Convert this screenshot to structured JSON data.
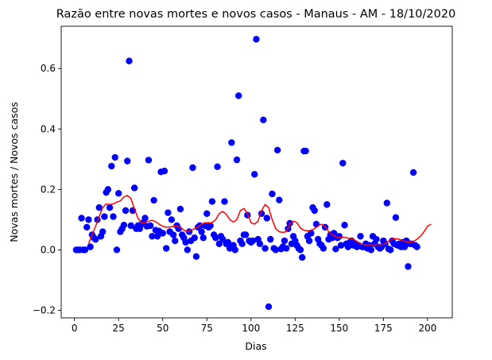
{
  "chart_data": {
    "type": "scatter",
    "title": "Razão entre novas mortes e novos casos - Manaus - AM - 18/10/2020",
    "xlabel": "Dias",
    "ylabel": "Novas mortes / Novos casos",
    "xlim": [
      -7.5,
      214
    ],
    "ylim": [
      -0.225,
      0.74
    ],
    "x_ticks": [
      0,
      25,
      50,
      75,
      100,
      125,
      150,
      175,
      200
    ],
    "y_ticks": [
      -0.2,
      0.0,
      0.2,
      0.4,
      0.6
    ],
    "x_tick_labels": [
      "0",
      "25",
      "50",
      "75",
      "100",
      "125",
      "150",
      "175",
      "200"
    ],
    "y_tick_labels": [
      "−0.2",
      "0.0",
      "0.2",
      "0.4",
      "0.6"
    ],
    "grid": false,
    "legend": "none",
    "colors": {
      "points": "#0000ff",
      "line": "#ff0000"
    },
    "series": [
      {
        "kind": "scatter",
        "points": [
          [
            1,
            0.0
          ],
          [
            2,
            0.0
          ],
          [
            3,
            0.0
          ],
          [
            4,
            0.105
          ],
          [
            5,
            0.0
          ],
          [
            6,
            0.0
          ],
          [
            7,
            0.075
          ],
          [
            8,
            0.1
          ],
          [
            9,
            0.01
          ],
          [
            10,
            0.05
          ],
          [
            11,
            0.04
          ],
          [
            12,
            0.035
          ],
          [
            13,
            0.1
          ],
          [
            14,
            0.14
          ],
          [
            15,
            0.045
          ],
          [
            16,
            0.06
          ],
          [
            17,
            0.11
          ],
          [
            18,
            0.19
          ],
          [
            19,
            0.2
          ],
          [
            20,
            0.14
          ],
          [
            21,
            0.277
          ],
          [
            22,
            0.11
          ],
          [
            23,
            0.306
          ],
          [
            24,
            0.0
          ],
          [
            25,
            0.187
          ],
          [
            26,
            0.06
          ],
          [
            27,
            0.07
          ],
          [
            28,
            0.082
          ],
          [
            29,
            0.13
          ],
          [
            30,
            0.294
          ],
          [
            31,
            0.625
          ],
          [
            32,
            0.08
          ],
          [
            33,
            0.13
          ],
          [
            34,
            0.205
          ],
          [
            35,
            0.07
          ],
          [
            36,
            0.08
          ],
          [
            37,
            0.07
          ],
          [
            38,
            0.085
          ],
          [
            39,
            0.09
          ],
          [
            40,
            0.105
          ],
          [
            41,
            0.078
          ],
          [
            42,
            0.297
          ],
          [
            43,
            0.08
          ],
          [
            44,
            0.045
          ],
          [
            45,
            0.164
          ],
          [
            46,
            0.065
          ],
          [
            47,
            0.045
          ],
          [
            48,
            0.062
          ],
          [
            49,
            0.258
          ],
          [
            50,
            0.055
          ],
          [
            51,
            0.261
          ],
          [
            52,
            0.005
          ],
          [
            53,
            0.123
          ],
          [
            54,
            0.06
          ],
          [
            55,
            0.1
          ],
          [
            56,
            0.05
          ],
          [
            57,
            0.03
          ],
          [
            58,
            0.08
          ],
          [
            59,
            0.07
          ],
          [
            60,
            0.135
          ],
          [
            61,
            0.05
          ],
          [
            62,
            0.04
          ],
          [
            63,
            0.025
          ],
          [
            64,
            0.0
          ],
          [
            65,
            0.06
          ],
          [
            66,
            0.03
          ],
          [
            67,
            0.272
          ],
          [
            68,
            0.04
          ],
          [
            69,
            -0.022
          ],
          [
            70,
            0.075
          ],
          [
            71,
            0.08
          ],
          [
            72,
            0.06
          ],
          [
            73,
            0.04
          ],
          [
            74,
            0.08
          ],
          [
            75,
            0.12
          ],
          [
            76,
            0.075
          ],
          [
            77,
            0.08
          ],
          [
            78,
            0.16
          ],
          [
            79,
            0.05
          ],
          [
            80,
            0.04
          ],
          [
            81,
            0.275
          ],
          [
            82,
            0.02
          ],
          [
            83,
            0.045
          ],
          [
            84,
            0.035
          ],
          [
            85,
            0.16
          ],
          [
            86,
            0.02
          ],
          [
            87,
            0.025
          ],
          [
            88,
            0.005
          ],
          [
            89,
            0.355
          ],
          [
            90,
            0.015
          ],
          [
            91,
            0.0
          ],
          [
            92,
            0.298
          ],
          [
            93,
            0.51
          ],
          [
            94,
            0.03
          ],
          [
            95,
            0.02
          ],
          [
            96,
            0.05
          ],
          [
            97,
            0.05
          ],
          [
            98,
            0.115
          ],
          [
            99,
            0.03
          ],
          [
            100,
            0.025
          ],
          [
            101,
            0.03
          ],
          [
            102,
            0.25
          ],
          [
            103,
            0.697
          ],
          [
            104,
            0.035
          ],
          [
            105,
            0.02
          ],
          [
            106,
            0.12
          ],
          [
            107,
            0.43
          ],
          [
            108,
            0.005
          ],
          [
            109,
            0.105
          ],
          [
            110,
            -0.188
          ],
          [
            111,
            0.035
          ],
          [
            112,
            0.185
          ],
          [
            113,
            0.005
          ],
          [
            114,
            0.0
          ],
          [
            115,
            0.33
          ],
          [
            116,
            0.165
          ],
          [
            117,
            0.003
          ],
          [
            118,
            0.01
          ],
          [
            119,
            0.03
          ],
          [
            120,
            0.005
          ],
          [
            121,
            0.07
          ],
          [
            122,
            0.088
          ],
          [
            123,
            0.02
          ],
          [
            124,
            0.045
          ],
          [
            125,
            0.03
          ],
          [
            126,
            0.015
          ],
          [
            127,
            0.005
          ],
          [
            128,
            0.0
          ],
          [
            129,
            -0.025
          ],
          [
            130,
            0.327
          ],
          [
            131,
            0.327
          ],
          [
            132,
            0.045
          ],
          [
            133,
            0.03
          ],
          [
            134,
            0.055
          ],
          [
            135,
            0.14
          ],
          [
            136,
            0.13
          ],
          [
            137,
            0.085
          ],
          [
            138,
            0.035
          ],
          [
            139,
            0.02
          ],
          [
            140,
            0.015
          ],
          [
            141,
            0.005
          ],
          [
            142,
            0.075
          ],
          [
            143,
            0.15
          ],
          [
            144,
            0.035
          ],
          [
            145,
            0.05
          ],
          [
            146,
            0.04
          ],
          [
            147,
            0.055
          ],
          [
            148,
            0.003
          ],
          [
            149,
            0.04
          ],
          [
            150,
            0.045
          ],
          [
            151,
            0.015
          ],
          [
            152,
            0.287
          ],
          [
            153,
            0.082
          ],
          [
            154,
            0.02
          ],
          [
            155,
            0.01
          ],
          [
            156,
            0.025
          ],
          [
            157,
            0.03
          ],
          [
            158,
            0.015
          ],
          [
            159,
            0.02
          ],
          [
            160,
            0.01
          ],
          [
            161,
            0.015
          ],
          [
            162,
            0.045
          ],
          [
            163,
            0.01
          ],
          [
            164,
            0.01
          ],
          [
            165,
            0.02
          ],
          [
            166,
            0.005
          ],
          [
            167,
            0.015
          ],
          [
            168,
            0.0
          ],
          [
            169,
            0.045
          ],
          [
            170,
            0.02
          ],
          [
            171,
            0.035
          ],
          [
            172,
            0.01
          ],
          [
            173,
            0.005
          ],
          [
            174,
            0.01
          ],
          [
            175,
            0.03
          ],
          [
            176,
            0.02
          ],
          [
            177,
            0.155
          ],
          [
            178,
            0.003
          ],
          [
            179,
            0.0
          ],
          [
            180,
            0.03
          ],
          [
            181,
            0.02
          ],
          [
            182,
            0.107
          ],
          [
            183,
            0.015
          ],
          [
            184,
            0.02
          ],
          [
            185,
            0.01
          ],
          [
            186,
            0.025
          ],
          [
            187,
            0.01
          ],
          [
            188,
            0.03
          ],
          [
            189,
            -0.055
          ],
          [
            190,
            0.02
          ],
          [
            191,
            0.02
          ],
          [
            192,
            0.256
          ],
          [
            193,
            0.015
          ],
          [
            194,
            0.01
          ]
        ]
      },
      {
        "kind": "line",
        "points": [
          [
            8,
            0.02
          ],
          [
            10,
            0.05
          ],
          [
            12,
            0.078
          ],
          [
            14,
            0.11
          ],
          [
            16,
            0.14
          ],
          [
            18,
            0.152
          ],
          [
            20,
            0.15
          ],
          [
            22,
            0.152
          ],
          [
            24,
            0.158
          ],
          [
            26,
            0.162
          ],
          [
            28,
            0.175
          ],
          [
            30,
            0.18
          ],
          [
            32,
            0.17
          ],
          [
            34,
            0.135
          ],
          [
            36,
            0.105
          ],
          [
            38,
            0.09
          ],
          [
            40,
            0.09
          ],
          [
            42,
            0.095
          ],
          [
            44,
            0.098
          ],
          [
            46,
            0.093
          ],
          [
            48,
            0.085
          ],
          [
            50,
            0.078
          ],
          [
            52,
            0.075
          ],
          [
            54,
            0.075
          ],
          [
            56,
            0.078
          ],
          [
            58,
            0.08
          ],
          [
            60,
            0.075
          ],
          [
            62,
            0.065
          ],
          [
            64,
            0.06
          ],
          [
            66,
            0.065
          ],
          [
            68,
            0.07
          ],
          [
            70,
            0.075
          ],
          [
            72,
            0.085
          ],
          [
            74,
            0.09
          ],
          [
            76,
            0.09
          ],
          [
            78,
            0.09
          ],
          [
            80,
            0.1
          ],
          [
            82,
            0.12
          ],
          [
            84,
            0.127
          ],
          [
            86,
            0.118
          ],
          [
            88,
            0.1
          ],
          [
            90,
            0.092
          ],
          [
            92,
            0.1
          ],
          [
            94,
            0.13
          ],
          [
            96,
            0.137
          ],
          [
            98,
            0.12
          ],
          [
            100,
            0.09
          ],
          [
            102,
            0.085
          ],
          [
            104,
            0.095
          ],
          [
            106,
            0.13
          ],
          [
            108,
            0.15
          ],
          [
            110,
            0.14
          ],
          [
            112,
            0.1
          ],
          [
            114,
            0.07
          ],
          [
            116,
            0.06
          ],
          [
            118,
            0.058
          ],
          [
            120,
            0.06
          ],
          [
            122,
            0.085
          ],
          [
            124,
            0.095
          ],
          [
            126,
            0.09
          ],
          [
            128,
            0.072
          ],
          [
            130,
            0.065
          ],
          [
            132,
            0.063
          ],
          [
            134,
            0.065
          ],
          [
            136,
            0.07
          ],
          [
            138,
            0.08
          ],
          [
            140,
            0.085
          ],
          [
            142,
            0.078
          ],
          [
            144,
            0.06
          ],
          [
            146,
            0.05
          ],
          [
            148,
            0.044
          ],
          [
            150,
            0.04
          ],
          [
            152,
            0.042
          ],
          [
            154,
            0.04
          ],
          [
            156,
            0.038
          ],
          [
            158,
            0.035
          ],
          [
            160,
            0.028
          ],
          [
            162,
            0.02
          ],
          [
            164,
            0.017
          ],
          [
            166,
            0.017
          ],
          [
            168,
            0.017
          ],
          [
            170,
            0.017
          ],
          [
            172,
            0.018
          ],
          [
            174,
            0.017
          ],
          [
            176,
            0.02
          ],
          [
            178,
            0.03
          ],
          [
            180,
            0.035
          ],
          [
            182,
            0.037
          ],
          [
            184,
            0.035
          ],
          [
            186,
            0.03
          ],
          [
            188,
            0.027
          ],
          [
            190,
            0.025
          ],
          [
            192,
            0.028
          ],
          [
            194,
            0.035
          ],
          [
            196,
            0.045
          ],
          [
            198,
            0.06
          ],
          [
            200,
            0.078
          ],
          [
            202,
            0.085
          ]
        ]
      }
    ]
  }
}
